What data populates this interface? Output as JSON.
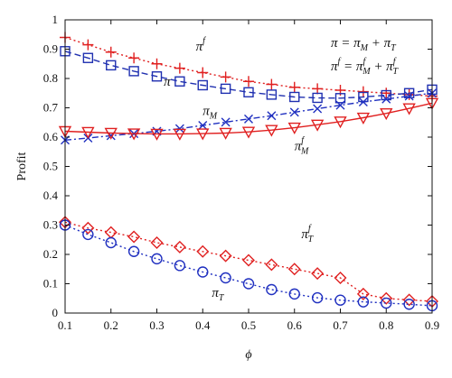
{
  "chart_data": {
    "type": "line",
    "xlabel": "ϕ",
    "ylabel": "Profit",
    "xlim": [
      0.1,
      0.9
    ],
    "ylim": [
      0,
      1
    ],
    "xticks": [
      "0.1",
      "0.2",
      "0.3",
      "0.4",
      "0.5",
      "0.6",
      "0.7",
      "0.8",
      "0.9"
    ],
    "yticks": [
      "0",
      "0.1",
      "0.2",
      "0.3",
      "0.4",
      "0.5",
      "0.6",
      "0.7",
      "0.8",
      "0.9",
      "1"
    ],
    "grid": false,
    "x": [
      0.1,
      0.15,
      0.2,
      0.25,
      0.3,
      0.35,
      0.4,
      0.45,
      0.5,
      0.55,
      0.6,
      0.65,
      0.7,
      0.75,
      0.8,
      0.85,
      0.9
    ],
    "series": [
      {
        "key": "pi_f",
        "color": "#e02020",
        "marker": "plus",
        "line": "dotted",
        "values": [
          0.94,
          0.915,
          0.89,
          0.87,
          0.85,
          0.835,
          0.82,
          0.805,
          0.79,
          0.78,
          0.77,
          0.765,
          0.76,
          0.755,
          0.75,
          0.745,
          0.74
        ]
      },
      {
        "key": "pi",
        "color": "#2030b0",
        "marker": "square",
        "line": "dashed",
        "values": [
          0.893,
          0.87,
          0.845,
          0.825,
          0.807,
          0.79,
          0.777,
          0.765,
          0.753,
          0.745,
          0.737,
          0.734,
          0.733,
          0.737,
          0.743,
          0.75,
          0.762
        ]
      },
      {
        "key": "pi_M",
        "color": "#2030c0",
        "marker": "x",
        "line": "dashdot",
        "values": [
          0.59,
          0.597,
          0.605,
          0.612,
          0.62,
          0.629,
          0.64,
          0.651,
          0.662,
          0.673,
          0.685,
          0.697,
          0.709,
          0.72,
          0.73,
          0.74,
          0.75
        ]
      },
      {
        "key": "pi_M_f",
        "color": "#e02020",
        "marker": "triangle-down",
        "line": "solid",
        "values": [
          0.62,
          0.617,
          0.614,
          0.612,
          0.611,
          0.611,
          0.612,
          0.614,
          0.618,
          0.624,
          0.632,
          0.642,
          0.653,
          0.666,
          0.681,
          0.698,
          0.716
        ]
      },
      {
        "key": "pi_T_f",
        "color": "#e02020",
        "marker": "diamond",
        "line": "dotted",
        "values": [
          0.31,
          0.29,
          0.275,
          0.26,
          0.24,
          0.225,
          0.21,
          0.195,
          0.18,
          0.165,
          0.15,
          0.135,
          0.12,
          0.065,
          0.05,
          0.045,
          0.04
        ]
      },
      {
        "key": "pi_T",
        "color": "#2030c0",
        "marker": "circle",
        "line": "dotted",
        "values": [
          0.3,
          0.268,
          0.24,
          0.21,
          0.185,
          0.162,
          0.14,
          0.12,
          0.1,
          0.08,
          0.065,
          0.052,
          0.044,
          0.038,
          0.034,
          0.03,
          0.025
        ]
      }
    ],
    "annotations": [
      {
        "key": "pi_f_label",
        "base": "π",
        "sup": "f",
        "sub": "",
        "x": 0.385,
        "y": 0.895
      },
      {
        "key": "pi_label",
        "base": "π",
        "sup": "",
        "sub": "",
        "x": 0.315,
        "y": 0.775
      },
      {
        "key": "pi_M_label",
        "base": "π",
        "sup": "",
        "sub": "M",
        "x": 0.4,
        "y": 0.675
      },
      {
        "key": "pi_M_f_label",
        "base": "π",
        "sup": "f",
        "sub": "M",
        "x": 0.6,
        "y": 0.555
      },
      {
        "key": "pi_T_f_label",
        "base": "π",
        "sup": "f",
        "sub": "T",
        "x": 0.615,
        "y": 0.255
      },
      {
        "key": "pi_T_label",
        "base": "π",
        "sup": "",
        "sub": "T",
        "x": 0.42,
        "y": 0.055
      }
    ],
    "equations": [
      {
        "key": "eq1",
        "text": "π = π_M + π_T"
      },
      {
        "key": "eq2",
        "text": "π^f = π_M^f + π_T^f"
      }
    ]
  }
}
